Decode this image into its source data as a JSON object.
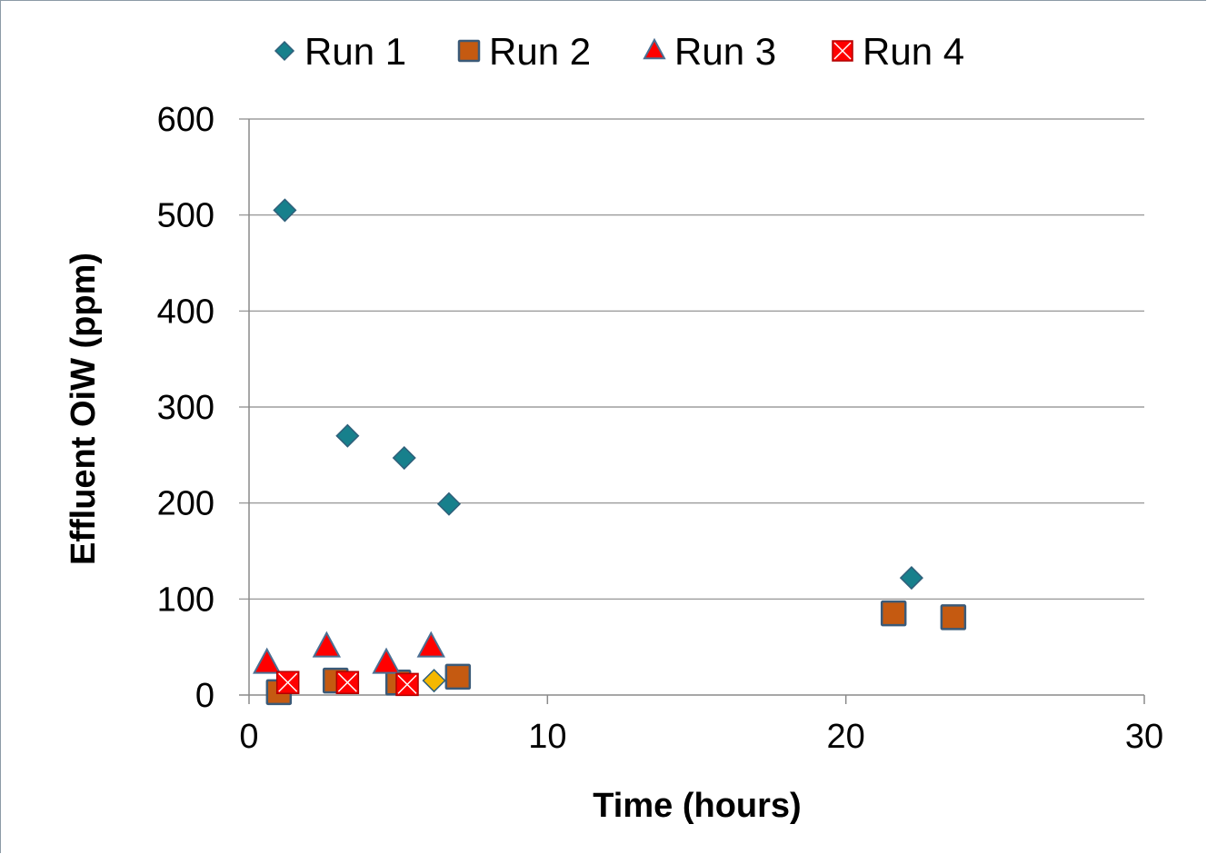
{
  "chart_data": {
    "type": "scatter",
    "xlabel": "Time (hours)",
    "ylabel": "Effluent OiW (ppm)",
    "xlim": [
      0,
      30
    ],
    "ylim": [
      0,
      600
    ],
    "xticks": [
      "0",
      "10",
      "20",
      "30"
    ],
    "yticks": [
      "0",
      "100",
      "200",
      "300",
      "400",
      "500",
      "600"
    ],
    "grid": "horizontal",
    "legend_position": "top",
    "series": [
      {
        "name": "Run 1",
        "marker": "diamond",
        "color": "#17808c",
        "points": [
          [
            1.2,
            505
          ],
          [
            3.3,
            270
          ],
          [
            5.2,
            247
          ],
          [
            6.7,
            199
          ],
          [
            22.2,
            122
          ]
        ]
      },
      {
        "name": "Run 2",
        "marker": "square",
        "color": "#c55a11",
        "points": [
          [
            1.0,
            3
          ],
          [
            2.9,
            15
          ],
          [
            5.0,
            13
          ],
          [
            7.0,
            19
          ],
          [
            21.6,
            85
          ],
          [
            23.6,
            81
          ]
        ]
      },
      {
        "name": "Run 3",
        "marker": "triangle",
        "color": "#ff0000",
        "points": [
          [
            0.6,
            33
          ],
          [
            2.6,
            50
          ],
          [
            4.6,
            33
          ],
          [
            6.1,
            50
          ]
        ]
      },
      {
        "name": "Run 4",
        "marker": "x-square",
        "color": "#ff0000",
        "points": [
          [
            1.3,
            13
          ],
          [
            3.3,
            13
          ],
          [
            5.3,
            11
          ]
        ]
      },
      {
        "name": "",
        "marker": "diamond",
        "color": "#f5b800",
        "points": [
          [
            6.2,
            15
          ]
        ]
      }
    ]
  }
}
